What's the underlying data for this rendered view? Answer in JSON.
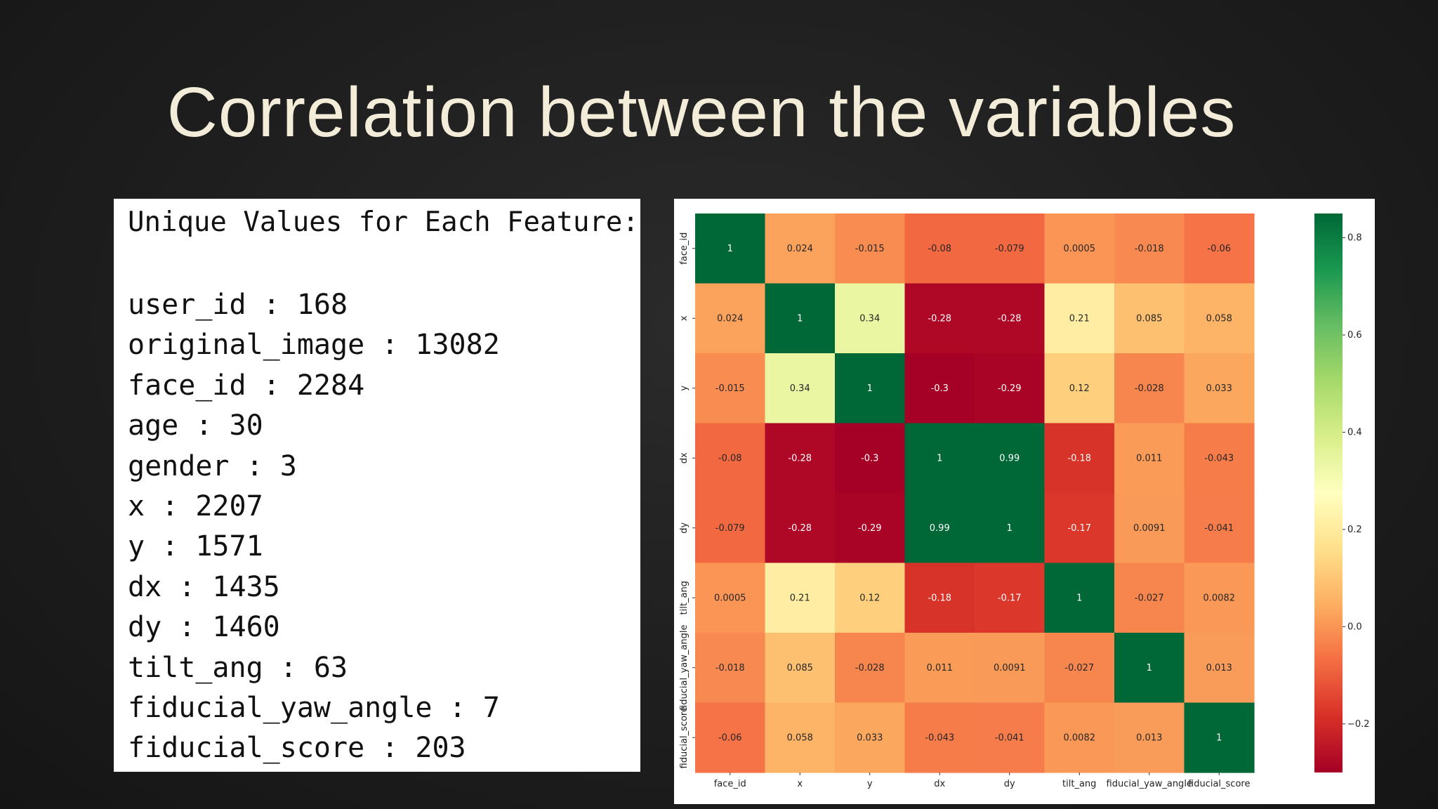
{
  "slide": {
    "title": "Correlation between the variables"
  },
  "unique_values": {
    "heading": "Unique Values for Each Feature:",
    "items": [
      "user_id : 168",
      "original_image : 13082",
      "face_id : 2284",
      "age : 30",
      "gender : 3",
      "x : 2207",
      "y : 1571",
      "dx : 1435",
      "dy : 1460",
      "tilt_ang : 63",
      "fiducial_yaw_angle : 7",
      "fiducial_score : 203"
    ]
  },
  "colors": {
    "background": "#1e1e1e",
    "title": "#f2ecd8",
    "colormap": "RdYlGn"
  },
  "chart_data": {
    "type": "heatmap",
    "colormap": "RdYlGn",
    "x_labels": [
      "face_id",
      "x",
      "y",
      "dx",
      "dy",
      "tilt_ang",
      "fiducial_yaw_angle",
      "fiducial_score"
    ],
    "y_labels": [
      "face_id",
      "x",
      "y",
      "dx",
      "dy",
      "tilt_ang",
      "fiducial_yaw_angle",
      "fiducial_score"
    ],
    "values": [
      [
        1,
        0.024,
        -0.015,
        -0.08,
        -0.079,
        0.0005,
        -0.018,
        -0.06
      ],
      [
        0.024,
        1,
        0.34,
        -0.28,
        -0.28,
        0.21,
        0.085,
        0.058
      ],
      [
        -0.015,
        0.34,
        1,
        -0.3,
        -0.29,
        0.12,
        -0.028,
        0.033
      ],
      [
        -0.08,
        -0.28,
        -0.3,
        1,
        0.99,
        -0.18,
        0.011,
        -0.043
      ],
      [
        -0.079,
        -0.28,
        -0.29,
        0.99,
        1,
        -0.17,
        0.0091,
        -0.041
      ],
      [
        0.0005,
        0.21,
        0.12,
        -0.18,
        -0.17,
        1,
        -0.027,
        0.0082
      ],
      [
        -0.018,
        0.085,
        -0.028,
        0.011,
        0.0091,
        -0.027,
        1,
        0.013
      ],
      [
        -0.06,
        0.058,
        0.033,
        -0.043,
        -0.041,
        0.0082,
        0.013,
        1
      ]
    ],
    "value_labels": [
      [
        "1",
        "0.024",
        "-0.015",
        "-0.08",
        "-0.079",
        "0.0005",
        "-0.018",
        "-0.06"
      ],
      [
        "0.024",
        "1",
        "0.34",
        "-0.28",
        "-0.28",
        "0.21",
        "0.085",
        "0.058"
      ],
      [
        "-0.015",
        "0.34",
        "1",
        "-0.3",
        "-0.29",
        "0.12",
        "-0.028",
        "0.033"
      ],
      [
        "-0.08",
        "-0.28",
        "-0.3",
        "1",
        "0.99",
        "-0.18",
        "0.011",
        "-0.043"
      ],
      [
        "-0.079",
        "-0.28",
        "-0.29",
        "0.99",
        "1",
        "-0.17",
        "0.0091",
        "-0.041"
      ],
      [
        "0.0005",
        "0.21",
        "0.12",
        "-0.18",
        "-0.17",
        "1",
        "-0.027",
        "0.0082"
      ],
      [
        "-0.018",
        "0.085",
        "-0.028",
        "0.011",
        "0.0091",
        "-0.027",
        "1",
        "0.013"
      ],
      [
        "-0.06",
        "0.058",
        "0.033",
        "-0.043",
        "-0.041",
        "0.0082",
        "0.013",
        "1"
      ]
    ],
    "colorbar": {
      "vmin": -0.3,
      "vmax": 0.85,
      "ticks": [
        0.8,
        0.6,
        0.4,
        0.2,
        0.0,
        -0.2
      ],
      "tick_labels": [
        "0.8",
        "0.6",
        "0.4",
        "0.2",
        "0.0",
        "−0.2"
      ]
    }
  }
}
